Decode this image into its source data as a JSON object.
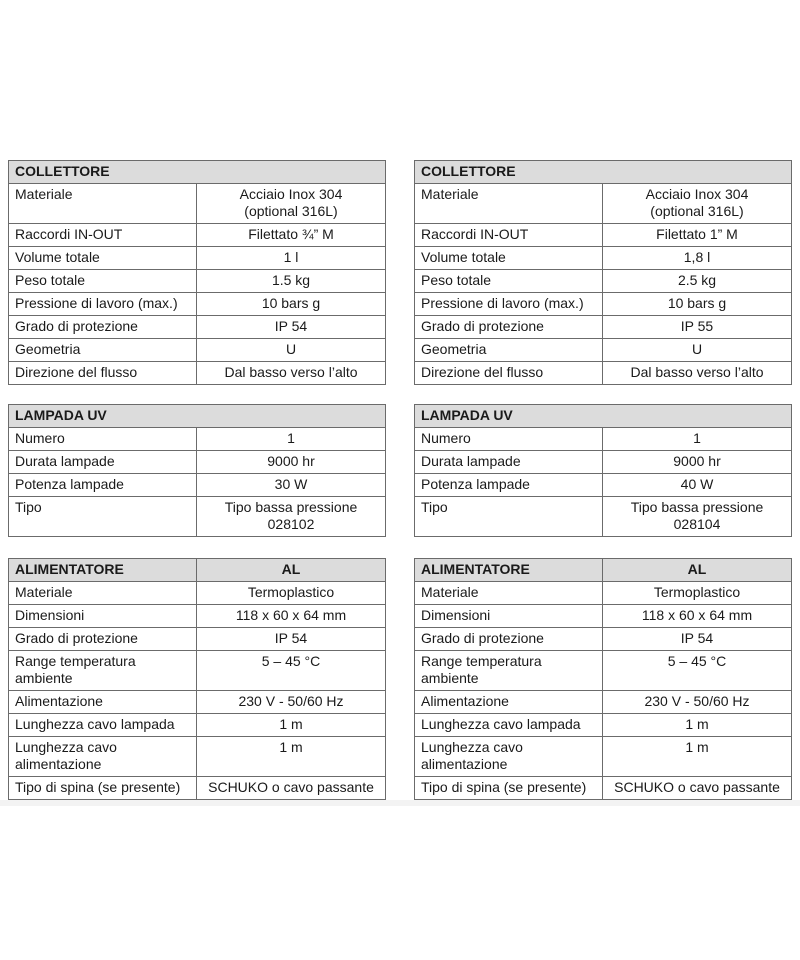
{
  "left": {
    "collettore": {
      "title": "COLLETTORE",
      "rows": [
        {
          "label": "Materiale",
          "value": "Acciaio Inox 304\n(optional 316L)"
        },
        {
          "label": "Raccordi IN-OUT",
          "value": "Filettato ¾” M"
        },
        {
          "label": "Volume totale",
          "value": "1  l"
        },
        {
          "label": "Peso totale",
          "value": "1.5 kg"
        },
        {
          "label": "Pressione di lavoro (max.)",
          "value": "10 bars g"
        },
        {
          "label": "Grado di protezione",
          "value": "IP 54"
        },
        {
          "label": "Geometria",
          "value": "U"
        },
        {
          "label": "Direzione del flusso",
          "value": "Dal basso verso l’alto"
        }
      ]
    },
    "lampada": {
      "title": "LAMPADA UV",
      "rows": [
        {
          "label": "Numero",
          "value": "1"
        },
        {
          "label": "Durata lampade",
          "value": "9000 hr"
        },
        {
          "label": "Potenza lampade",
          "value": "30 W"
        },
        {
          "label": "Tipo",
          "value": "Tipo bassa pressione\n028102"
        }
      ]
    },
    "alimentatore": {
      "title": "ALIMENTATORE",
      "title_value": "AL",
      "rows": [
        {
          "label": "Materiale",
          "value": "Termoplastico"
        },
        {
          "label": "Dimensioni",
          "value": "118 x 60 x 64 mm"
        },
        {
          "label": "Grado di protezione",
          "value": "IP 54"
        },
        {
          "label": "Range temperatura\nambiente",
          "value": "5 – 45 °C"
        },
        {
          "label": "Alimentazione",
          "value": "230 V - 50/60 Hz"
        },
        {
          "label": "Lunghezza cavo lampada",
          "value": "1 m"
        },
        {
          "label": "Lunghezza cavo\nalimentazione",
          "value": "1 m"
        },
        {
          "label": "Tipo di spina (se presente)",
          "value": "SCHUKO o cavo passante"
        }
      ]
    }
  },
  "right": {
    "collettore": {
      "title": "COLLETTORE",
      "rows": [
        {
          "label": "Materiale",
          "value": "Acciaio Inox 304\n(optional 316L)"
        },
        {
          "label": "Raccordi IN-OUT",
          "value": "Filettato 1” M"
        },
        {
          "label": "Volume totale",
          "value": "1,8 l"
        },
        {
          "label": "Peso totale",
          "value": "2.5 kg"
        },
        {
          "label": "Pressione di lavoro (max.)",
          "value": "10 bars g"
        },
        {
          "label": "Grado di protezione",
          "value": "IP 55"
        },
        {
          "label": "Geometria",
          "value": "U"
        },
        {
          "label": "Direzione del flusso",
          "value": "Dal basso verso l’alto"
        }
      ]
    },
    "lampada": {
      "title": "LAMPADA UV",
      "rows": [
        {
          "label": "Numero",
          "value": "1"
        },
        {
          "label": "Durata lampade",
          "value": "9000 hr"
        },
        {
          "label": "Potenza lampade",
          "value": "40 W"
        },
        {
          "label": "Tipo",
          "value": "Tipo bassa pressione\n028104"
        }
      ]
    },
    "alimentatore": {
      "title": "ALIMENTATORE",
      "title_value": "AL",
      "rows": [
        {
          "label": "Materiale",
          "value": "Termoplastico"
        },
        {
          "label": "Dimensioni",
          "value": "118 x 60 x 64 mm"
        },
        {
          "label": "Grado di protezione",
          "value": "IP 54"
        },
        {
          "label": "Range temperatura\nambiente",
          "value": "5 – 45 °C"
        },
        {
          "label": "Alimentazione",
          "value": "230 V - 50/60 Hz"
        },
        {
          "label": "Lunghezza cavo lampada",
          "value": "1 m"
        },
        {
          "label": "Lunghezza cavo\nalimentazione",
          "value": "1 m"
        },
        {
          "label": "Tipo di spina (se presente)",
          "value": "SCHUKO o cavo passante"
        }
      ]
    }
  }
}
